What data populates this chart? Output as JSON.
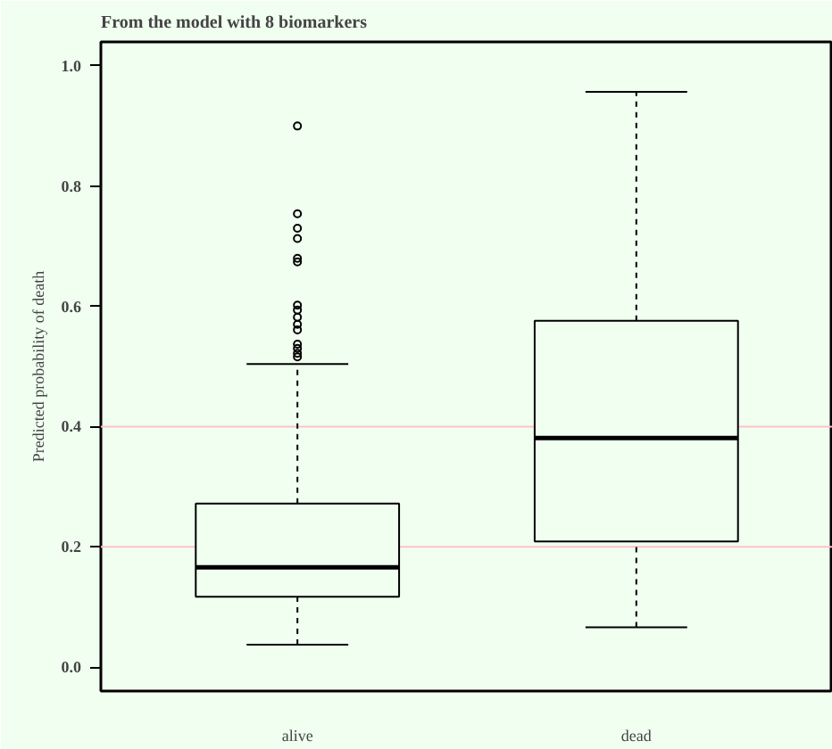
{
  "chart_data": {
    "type": "box",
    "title": "From the model with 8 biomarkers",
    "ylabel": "Predicted probability of death",
    "categories": [
      "alive",
      "dead"
    ],
    "boxes": [
      {
        "low": 0.037,
        "q1": 0.117,
        "median": 0.166,
        "q3": 0.272,
        "high": 0.504,
        "outliers": [
          0.9,
          0.754,
          0.73,
          0.713,
          0.68,
          0.674,
          0.602,
          0.594,
          0.582,
          0.57,
          0.561,
          0.537,
          0.53,
          0.522,
          0.516
        ]
      },
      {
        "low": 0.066,
        "q1": 0.209,
        "median": 0.381,
        "q3": 0.576,
        "high": 0.957
      }
    ],
    "color": "#000000",
    "ylim": [
      -0.04,
      1.04
    ],
    "yticks": [
      {
        "value": 0,
        "label": "0.0"
      },
      {
        "value": 0.2,
        "label": "0.2"
      },
      {
        "value": 0.4,
        "label": "0.4"
      },
      {
        "value": 0.6,
        "label": "0.6"
      },
      {
        "value": 0.8,
        "label": "0.8"
      },
      {
        "value": 1,
        "label": "1.0"
      }
    ],
    "ref_lines": [
      {
        "axis": "y",
        "value": 0.2,
        "color": "#ffc0cb"
      },
      {
        "axis": "y",
        "value": 0.4,
        "color": "#ffc0cb"
      }
    ],
    "grid": false
  }
}
